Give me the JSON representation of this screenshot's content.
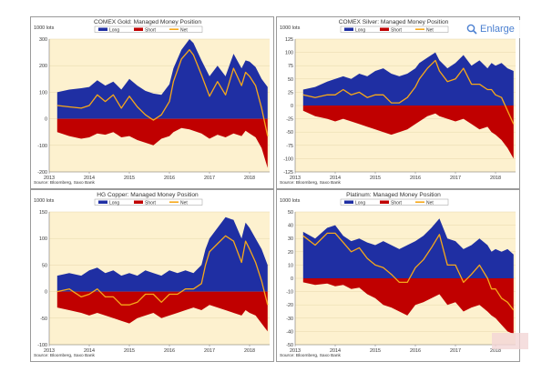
{
  "enlarge": {
    "label": "Enlarge"
  },
  "colors": {
    "long": "#1f2fa3",
    "short": "#c00000",
    "net": "#f6a81a",
    "plot_bg": "#fdf1cf",
    "grid": "#e6d7ab"
  },
  "chart_data": [
    {
      "type": "area",
      "title": "COMEX Gold: Managed Money Position",
      "unit_label": "1000 lots",
      "source": "Source: Bloomberg, Saxo Bank",
      "ylim": [
        -200,
        300
      ],
      "yticks": [
        300,
        200,
        100,
        0,
        -100,
        -200
      ],
      "xlim": [
        2013,
        2018.5
      ],
      "xticks": [
        "2013",
        "2014",
        "2015",
        "2016",
        "2017",
        "2018"
      ],
      "legend": [
        "Long",
        "Short",
        "Net"
      ],
      "x": [
        2013.2,
        2013.5,
        2013.8,
        2014.0,
        2014.2,
        2014.4,
        2014.6,
        2014.8,
        2015.0,
        2015.2,
        2015.4,
        2015.6,
        2015.8,
        2016.0,
        2016.1,
        2016.3,
        2016.5,
        2016.6,
        2016.8,
        2017.0,
        2017.2,
        2017.4,
        2017.6,
        2017.8,
        2017.9,
        2018.0,
        2018.15,
        2018.3,
        2018.45
      ],
      "series": [
        {
          "name": "Long",
          "values": [
            100,
            110,
            115,
            120,
            145,
            125,
            140,
            110,
            150,
            125,
            105,
            95,
            90,
            130,
            190,
            260,
            300,
            285,
            220,
            160,
            200,
            160,
            245,
            190,
            220,
            215,
            195,
            150,
            120
          ]
        },
        {
          "name": "Short",
          "values": [
            -50,
            -65,
            -75,
            -70,
            -55,
            -60,
            -50,
            -70,
            -65,
            -80,
            -90,
            -100,
            -75,
            -65,
            -50,
            -35,
            -40,
            -45,
            -55,
            -75,
            -60,
            -70,
            -55,
            -65,
            -45,
            -55,
            -70,
            -110,
            -185
          ]
        },
        {
          "name": "Net",
          "values": [
            50,
            45,
            40,
            50,
            90,
            65,
            90,
            40,
            85,
            45,
            15,
            -5,
            15,
            65,
            140,
            225,
            260,
            240,
            165,
            85,
            140,
            90,
            190,
            125,
            175,
            160,
            125,
            40,
            -65
          ]
        }
      ]
    },
    {
      "type": "area",
      "title": "COMEX Silver: Managed Money Position",
      "unit_label": "1000 lots",
      "source": "Source: Bloomberg, Saxo Bank",
      "ylim": [
        -125,
        125
      ],
      "yticks": [
        125,
        100,
        75,
        50,
        25,
        0,
        -25,
        -50,
        -75,
        -100,
        -125
      ],
      "xlim": [
        2013,
        2018.5
      ],
      "xticks": [
        "2013",
        "2014",
        "2015",
        "2016",
        "2017",
        "2018"
      ],
      "legend": [
        "Long",
        "Short",
        "Net"
      ],
      "x": [
        2013.2,
        2013.5,
        2013.8,
        2014.0,
        2014.2,
        2014.4,
        2014.6,
        2014.8,
        2015.0,
        2015.2,
        2015.4,
        2015.6,
        2015.8,
        2016.0,
        2016.1,
        2016.3,
        2016.5,
        2016.6,
        2016.8,
        2017.0,
        2017.2,
        2017.4,
        2017.6,
        2017.8,
        2017.9,
        2018.0,
        2018.15,
        2018.3,
        2018.45
      ],
      "series": [
        {
          "name": "Long",
          "values": [
            30,
            35,
            45,
            50,
            55,
            50,
            60,
            55,
            65,
            70,
            60,
            55,
            60,
            70,
            80,
            90,
            100,
            85,
            70,
            80,
            95,
            75,
            85,
            70,
            80,
            75,
            80,
            70,
            65
          ]
        },
        {
          "name": "Short",
          "values": [
            -10,
            -20,
            -25,
            -30,
            -25,
            -30,
            -35,
            -40,
            -45,
            -50,
            -55,
            -50,
            -45,
            -35,
            -30,
            -20,
            -15,
            -20,
            -25,
            -30,
            -25,
            -35,
            -45,
            -40,
            -50,
            -55,
            -65,
            -80,
            -100
          ]
        },
        {
          "name": "Net",
          "values": [
            20,
            15,
            20,
            20,
            30,
            20,
            25,
            15,
            20,
            20,
            5,
            5,
            15,
            35,
            50,
            70,
            85,
            65,
            45,
            50,
            70,
            40,
            40,
            30,
            30,
            20,
            15,
            -10,
            -35
          ]
        }
      ]
    },
    {
      "type": "area",
      "title": "HG Copper: Managed Money Position",
      "unit_label": "1000 lots",
      "source": "Source: Bloomberg, Saxo Bank",
      "ylim": [
        -100,
        150
      ],
      "yticks": [
        150,
        100,
        50,
        0,
        -50,
        -100
      ],
      "xlim": [
        2013,
        2018.5
      ],
      "xticks": [
        "2013",
        "2014",
        "2015",
        "2016",
        "2017",
        "2018"
      ],
      "legend": [
        "Long",
        "Short",
        "Net"
      ],
      "x": [
        2013.2,
        2013.5,
        2013.8,
        2014.0,
        2014.2,
        2014.4,
        2014.6,
        2014.8,
        2015.0,
        2015.2,
        2015.4,
        2015.6,
        2015.8,
        2016.0,
        2016.2,
        2016.4,
        2016.6,
        2016.8,
        2016.9,
        2017.0,
        2017.2,
        2017.4,
        2017.6,
        2017.8,
        2017.9,
        2018.0,
        2018.15,
        2018.3,
        2018.45
      ],
      "series": [
        {
          "name": "Long",
          "values": [
            30,
            35,
            30,
            40,
            45,
            35,
            40,
            30,
            35,
            30,
            40,
            35,
            30,
            40,
            35,
            40,
            35,
            50,
            80,
            100,
            120,
            140,
            135,
            100,
            130,
            120,
            100,
            80,
            50
          ]
        },
        {
          "name": "Short",
          "values": [
            -30,
            -35,
            -40,
            -45,
            -40,
            -45,
            -50,
            -55,
            -60,
            -50,
            -45,
            -40,
            -50,
            -45,
            -40,
            -35,
            -30,
            -35,
            -30,
            -25,
            -30,
            -35,
            -40,
            -45,
            -35,
            -40,
            -45,
            -60,
            -75
          ]
        },
        {
          "name": "Net",
          "values": [
            0,
            5,
            -10,
            -5,
            5,
            -10,
            -10,
            -25,
            -25,
            -20,
            -5,
            -5,
            -20,
            -5,
            -5,
            5,
            5,
            15,
            50,
            75,
            90,
            105,
            95,
            55,
            95,
            80,
            55,
            20,
            -25
          ]
        }
      ]
    },
    {
      "type": "area",
      "title": "Platinum: Managed Money Position",
      "unit_label": "1000 lots",
      "source": "Source: Bloomberg, Saxo Bank",
      "ylim": [
        -50,
        50
      ],
      "yticks": [
        50,
        40,
        30,
        20,
        10,
        0,
        -10,
        -20,
        -30,
        -40,
        -50
      ],
      "xlim": [
        2013,
        2018.5
      ],
      "xticks": [
        "2013",
        "2014",
        "2015",
        "2016",
        "2017",
        "2018"
      ],
      "legend": [
        "Long",
        "Short",
        "Net"
      ],
      "x": [
        2013.2,
        2013.5,
        2013.8,
        2014.0,
        2014.2,
        2014.4,
        2014.6,
        2014.8,
        2015.0,
        2015.2,
        2015.4,
        2015.6,
        2015.8,
        2016.0,
        2016.2,
        2016.4,
        2016.6,
        2016.8,
        2017.0,
        2017.2,
        2017.4,
        2017.6,
        2017.8,
        2017.9,
        2018.0,
        2018.15,
        2018.3,
        2018.45
      ],
      "series": [
        {
          "name": "Long",
          "values": [
            35,
            30,
            38,
            40,
            32,
            28,
            30,
            27,
            25,
            28,
            25,
            22,
            25,
            28,
            32,
            38,
            45,
            30,
            28,
            22,
            25,
            30,
            25,
            20,
            22,
            20,
            22,
            18
          ]
        },
        {
          "name": "Short",
          "values": [
            -3,
            -5,
            -4,
            -6,
            -5,
            -8,
            -7,
            -12,
            -15,
            -20,
            -22,
            -25,
            -28,
            -20,
            -18,
            -15,
            -12,
            -20,
            -18,
            -25,
            -22,
            -20,
            -25,
            -28,
            -30,
            -35,
            -40,
            -42
          ]
        },
        {
          "name": "Net",
          "values": [
            32,
            25,
            34,
            34,
            27,
            20,
            23,
            15,
            10,
            8,
            3,
            -3,
            -3,
            8,
            14,
            23,
            33,
            10,
            10,
            -3,
            3,
            10,
            0,
            -8,
            -8,
            -15,
            -18,
            -24
          ]
        }
      ]
    }
  ]
}
